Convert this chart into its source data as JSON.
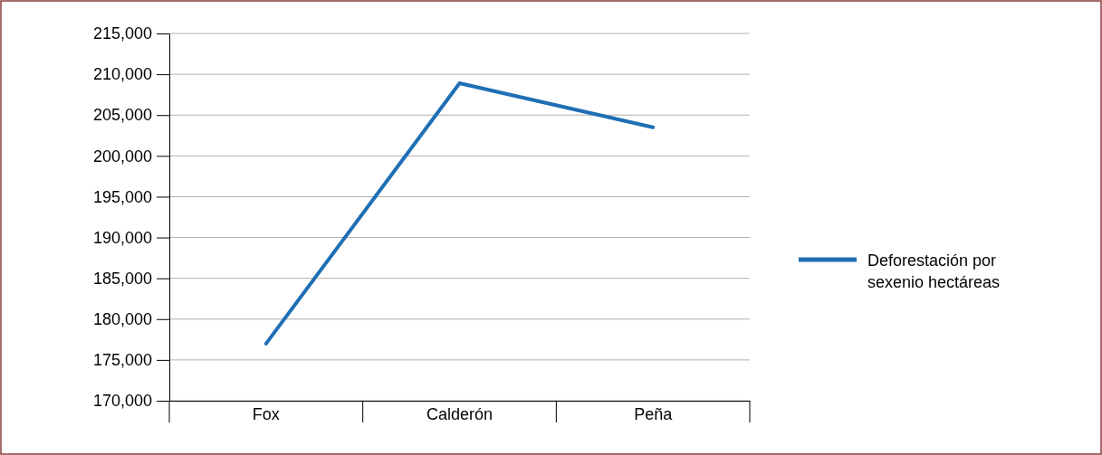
{
  "chart_data": {
    "type": "line",
    "categories": [
      "Fox",
      "Calderón",
      "Peña"
    ],
    "series": [
      {
        "name": "Deforestación por sexenio hectáreas",
        "color": "#1f6fb5",
        "values": [
          177000,
          208900,
          203500
        ]
      }
    ],
    "ylim": [
      170000,
      215000
    ],
    "yticks": [
      {
        "value": 170000,
        "label": "170,000"
      },
      {
        "value": 175000,
        "label": "175,000"
      },
      {
        "value": 180000,
        "label": "180,000"
      },
      {
        "value": 185000,
        "label": "185,000"
      },
      {
        "value": 190000,
        "label": "190,000"
      },
      {
        "value": 195000,
        "label": "195,000"
      },
      {
        "value": 200000,
        "label": "200,000"
      },
      {
        "value": 205000,
        "label": "205,000"
      },
      {
        "value": 210000,
        "label": "210,000"
      },
      {
        "value": 215000,
        "label": "215,000"
      }
    ],
    "grid": "y",
    "legend": "right",
    "marker": "none",
    "line_style": "solid"
  }
}
